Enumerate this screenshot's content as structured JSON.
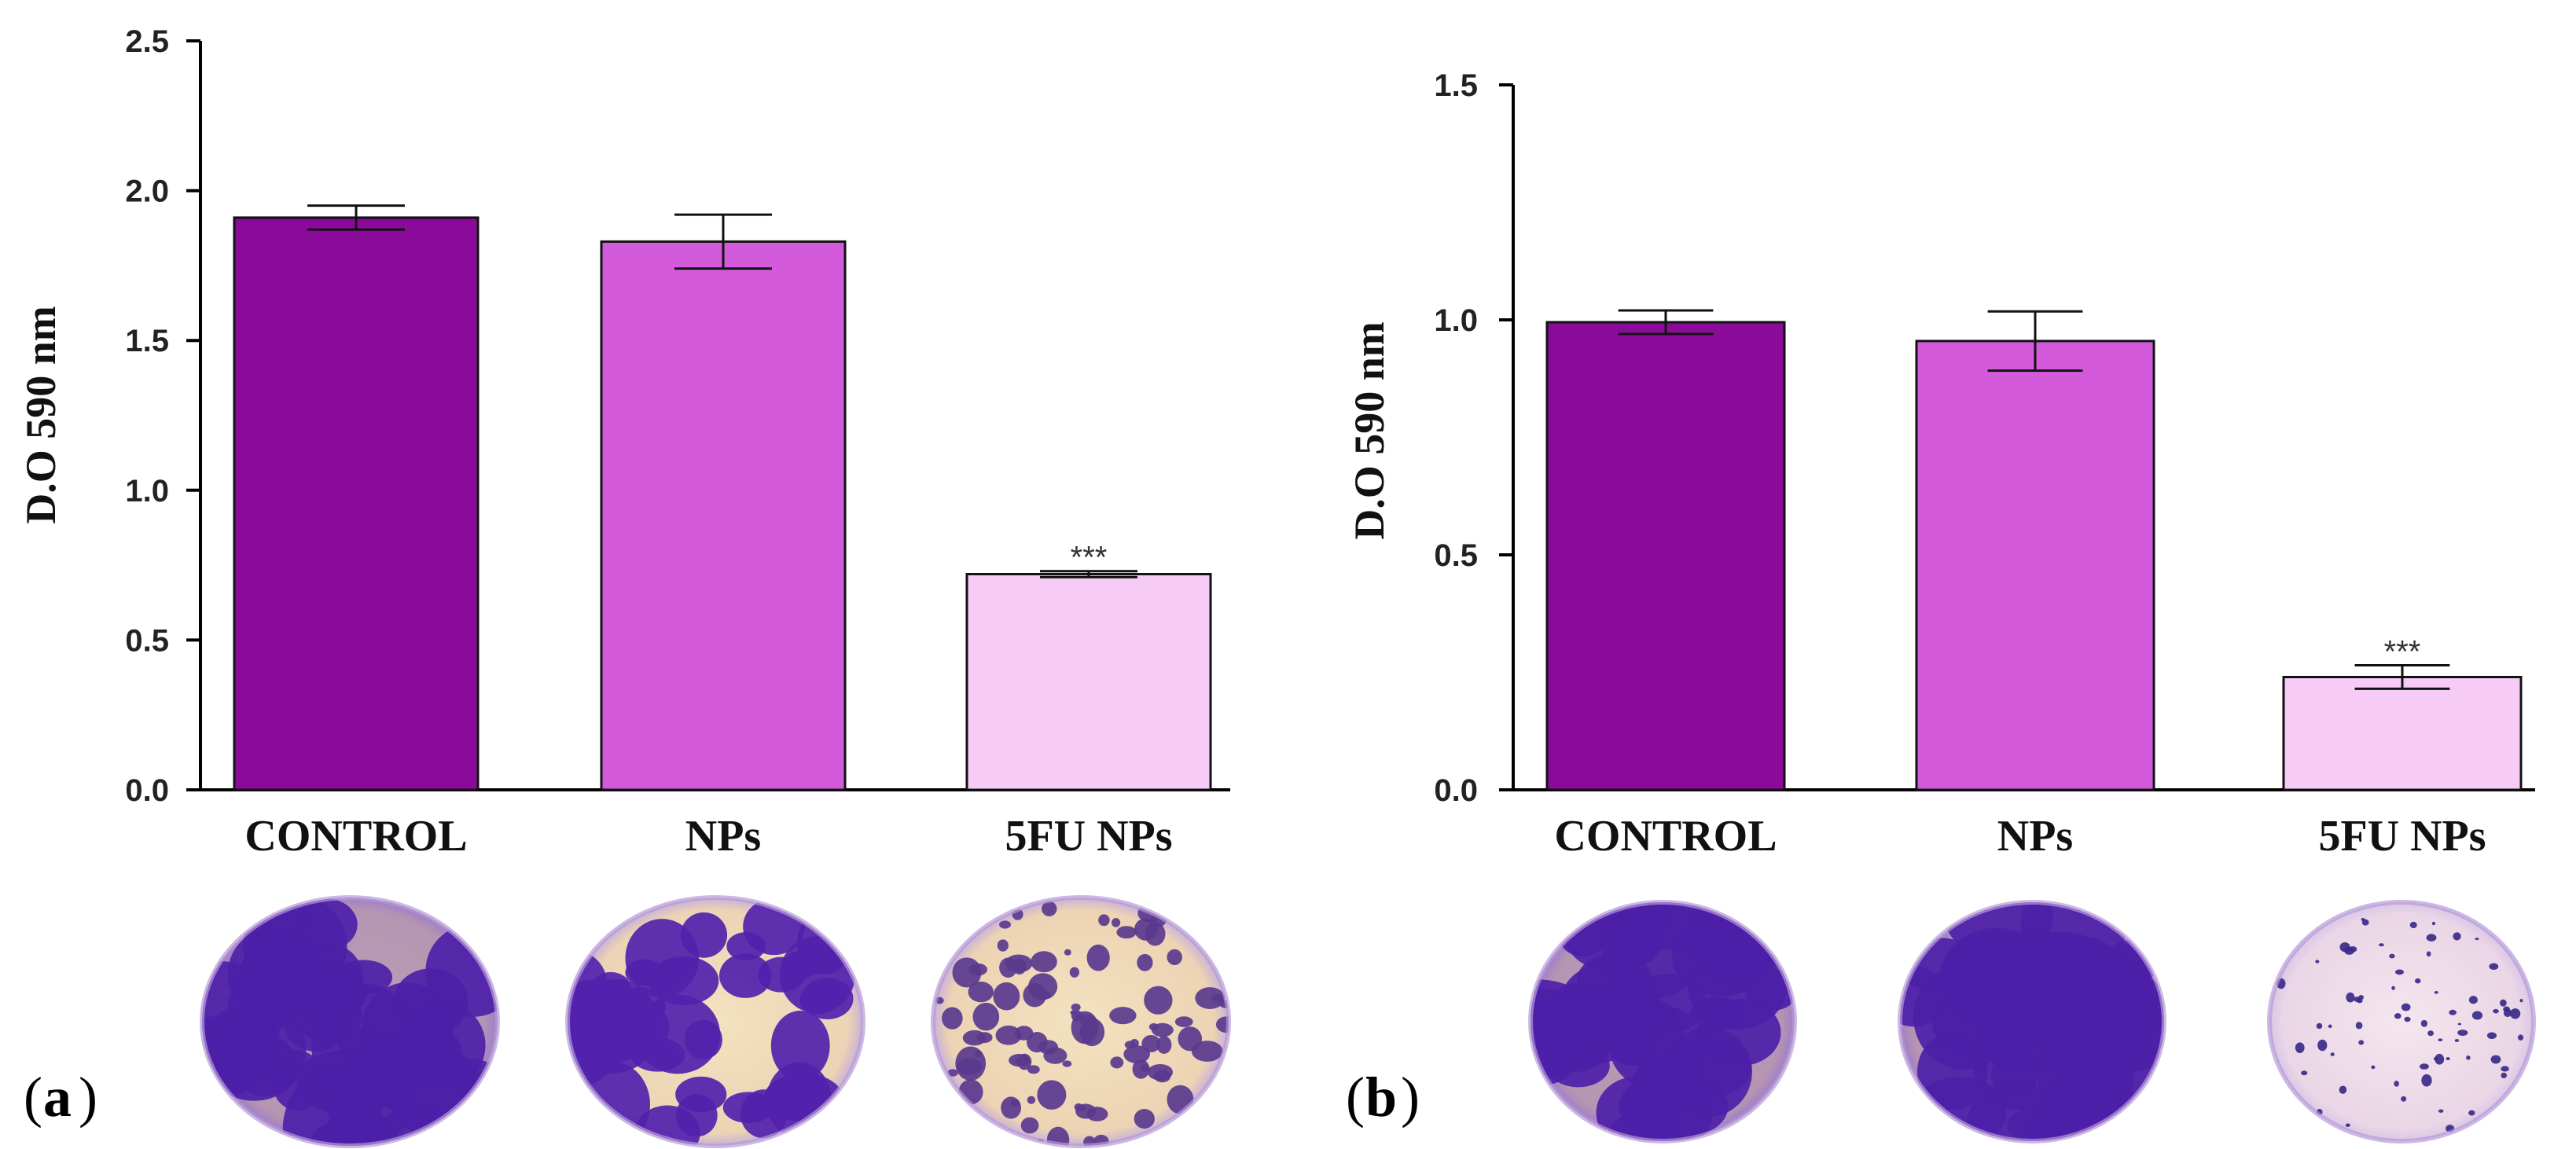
{
  "chart_data": [
    {
      "type": "bar",
      "panel": "a",
      "categories": [
        "CONTROL",
        "NPs",
        "5FU NPs"
      ],
      "values": [
        1.91,
        1.83,
        0.72
      ],
      "errors": [
        0.04,
        0.09,
        0.01
      ],
      "significance": [
        "",
        "",
        "***"
      ],
      "colors": [
        "#8a0a99",
        "#d35adb",
        "#f6ccf6"
      ],
      "ylabel": "D.O 590 nm",
      "ylim": [
        0,
        2.5
      ],
      "yticks": [
        "0.0",
        "0.5",
        "1.0",
        "1.5",
        "2.0",
        "2.5"
      ],
      "ytick_values": [
        0,
        0.5,
        1.0,
        1.5,
        2.0,
        2.5
      ]
    },
    {
      "type": "bar",
      "panel": "b",
      "categories": [
        "CONTROL",
        "NPs",
        "5FU NPs"
      ],
      "values": [
        0.995,
        0.955,
        0.24
      ],
      "errors": [
        0.025,
        0.063,
        0.025
      ],
      "significance": [
        "",
        "",
        "***"
      ],
      "colors": [
        "#8a0a99",
        "#d35adb",
        "#f6ccf6"
      ],
      "ylabel": "D.O 590 nm",
      "ylim": [
        0,
        1.5
      ],
      "yticks": [
        "0.0",
        "0.5",
        "1.0",
        "1.5"
      ],
      "ytick_values": [
        0,
        0.5,
        1.0,
        1.5
      ]
    }
  ],
  "micrographs": [
    {
      "panel": "a",
      "label": "CONTROL",
      "density": "dense"
    },
    {
      "panel": "a",
      "label": "NPs",
      "density": "medium"
    },
    {
      "panel": "a",
      "label": "5FU NPs",
      "density": "sparse"
    },
    {
      "panel": "b",
      "label": "CONTROL",
      "density": "dense"
    },
    {
      "panel": "b",
      "label": "NPs",
      "density": "dense"
    },
    {
      "panel": "b",
      "label": "5FU NPs",
      "density": "very-sparse"
    }
  ],
  "panels": {
    "a": "a",
    "b": "b"
  }
}
